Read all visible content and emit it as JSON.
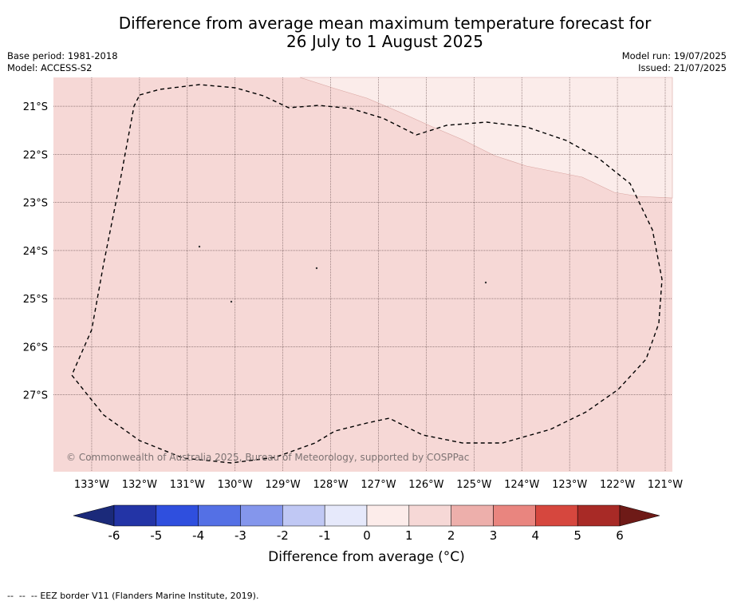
{
  "header": {
    "title_line1": "Difference from average mean maximum temperature forecast for",
    "title_line2": "26 July to 1 August 2025",
    "base_period": "Base period: 1981-2018",
    "model": "Model: ACCESS-S2",
    "model_run": "Model run: 19/07/2025",
    "issued": "Issued: 21/07/2025"
  },
  "map": {
    "lat_labels": [
      "21°S",
      "22°S",
      "23°S",
      "24°S",
      "25°S",
      "26°S",
      "27°S"
    ],
    "lat_values": [
      -21,
      -22,
      -23,
      -24,
      -25,
      -26,
      -27
    ],
    "lon_labels": [
      "133°W",
      "132°W",
      "131°W",
      "130°W",
      "129°W",
      "128°W",
      "127°W",
      "126°W",
      "125°W",
      "124°W",
      "123°W",
      "122°W",
      "121°W"
    ],
    "lon_values": [
      -133,
      -132,
      -131,
      -130,
      -129,
      -128,
      -127,
      -126,
      -125,
      -124,
      -123,
      -122,
      -121
    ],
    "extent": {
      "lon_min": -133.8,
      "lon_max": -120.85,
      "lat_min": -28.6,
      "lat_max": -20.4
    },
    "anomaly_regions": [
      {
        "range": "1 to 2",
        "color": "#f6d8d6"
      },
      {
        "range": "0 to 1",
        "color": "#fbecea"
      }
    ],
    "eez_border_color": "#000000",
    "copyright": "© Commonwealth of Australia 2025, Bureau of Meteorology, supported by COSPPac"
  },
  "colorbar": {
    "ticks": [
      "-6",
      "-5",
      "-4",
      "-3",
      "-2",
      "-1",
      "0",
      "1",
      "2",
      "3",
      "4",
      "5",
      "6"
    ],
    "colors": [
      "#2334a6",
      "#2f4fde",
      "#5470e5",
      "#8496ec",
      "#c0c8f4",
      "#e6e9fb",
      "#fcecea",
      "#f6d8d6",
      "#edafab",
      "#e9857f",
      "#d6473e",
      "#a82a26"
    ],
    "extend_low_color": "#1b2a7a",
    "extend_high_color": "#6e1a17",
    "label": "Difference from average (°C)"
  },
  "footnote": {
    "dashes": "--  --  --",
    "text": "EEZ border V11 (Flanders Marine Institute, 2019)."
  }
}
